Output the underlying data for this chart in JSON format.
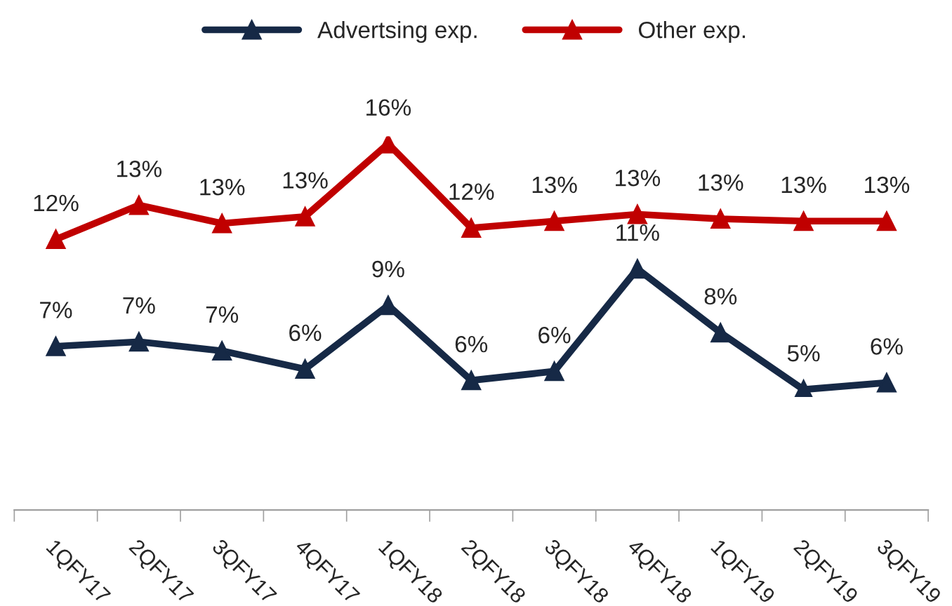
{
  "chart_data": {
    "type": "line",
    "categories": [
      "1QFY17",
      "2QFY17",
      "3QFY17",
      "4QFY17",
      "1QFY18",
      "2QFY18",
      "3QFY18",
      "4QFY18",
      "1QFY19",
      "2QFY19",
      "3QFY19"
    ],
    "series": [
      {
        "name": "Advertsing exp.",
        "color": "#162946",
        "values": [
          7.2,
          7.4,
          7.0,
          6.2,
          9.0,
          5.7,
          6.1,
          10.6,
          7.8,
          5.3,
          5.6
        ],
        "value_labels": [
          "7%",
          "7%",
          "7%",
          "6%",
          "9%",
          "6%",
          "6%",
          "11%",
          "8%",
          "5%",
          "6%"
        ]
      },
      {
        "name": "Other exp.",
        "color": "#c00000",
        "values": [
          11.9,
          13.4,
          12.6,
          12.9,
          16.1,
          12.4,
          12.7,
          13.0,
          12.8,
          12.7,
          12.7
        ],
        "value_labels": [
          "12%",
          "13%",
          "13%",
          "13%",
          "16%",
          "12%",
          "13%",
          "13%",
          "13%",
          "13%",
          "13%"
        ]
      }
    ],
    "legend": "top",
    "marker": "triangle",
    "line_style": "solid",
    "grid": false,
    "tick_labels": "x"
  }
}
